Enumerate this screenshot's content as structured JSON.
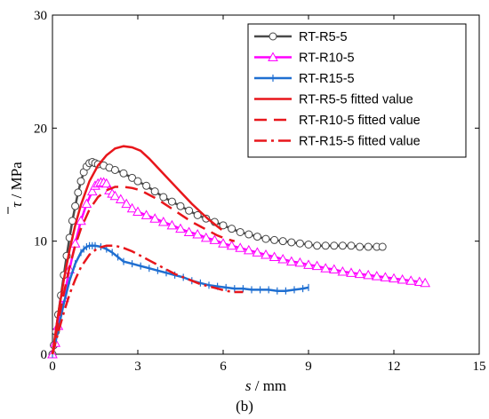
{
  "chart_data": {
    "type": "line",
    "panel_label": "(b)",
    "xlabel_symbol": "s",
    "xlabel_unit": " / mm",
    "ylabel_symbol": "τ",
    "ylabel_unit": " / MPa",
    "xlim": [
      0,
      15
    ],
    "ylim": [
      0,
      30
    ],
    "xticks": [
      0,
      3,
      6,
      9,
      12,
      15
    ],
    "yticks": [
      0,
      10,
      20,
      30
    ],
    "grid": false,
    "legend_position": "top-right",
    "series": [
      {
        "name": "RT-R5-5",
        "color": "#4a4a4a",
        "line_style": "solid",
        "marker": "circle",
        "x": [
          0,
          0.05,
          0.12,
          0.2,
          0.3,
          0.4,
          0.5,
          0.6,
          0.7,
          0.8,
          0.9,
          1.0,
          1.1,
          1.2,
          1.3,
          1.4,
          1.5,
          1.6,
          1.8,
          2.0,
          2.2,
          2.5,
          2.8,
          3.0,
          3.3,
          3.6,
          3.9,
          4.2,
          4.5,
          4.8,
          5.1,
          5.4,
          5.7,
          6.0,
          6.3,
          6.6,
          6.9,
          7.2,
          7.5,
          7.8,
          8.1,
          8.4,
          8.7,
          9.0,
          9.3,
          9.6,
          9.9,
          10.2,
          10.5,
          10.8,
          11.1,
          11.4,
          11.6
        ],
        "y": [
          0,
          0.8,
          2.0,
          3.5,
          5.2,
          7.0,
          8.7,
          10.3,
          11.8,
          13.1,
          14.3,
          15.3,
          16.1,
          16.6,
          16.9,
          17.0,
          16.9,
          16.8,
          16.7,
          16.5,
          16.3,
          16.0,
          15.6,
          15.3,
          14.9,
          14.4,
          13.9,
          13.5,
          13.1,
          12.7,
          12.3,
          12.0,
          11.7,
          11.4,
          11.1,
          10.8,
          10.6,
          10.4,
          10.2,
          10.1,
          10.0,
          9.9,
          9.8,
          9.7,
          9.6,
          9.6,
          9.6,
          9.6,
          9.6,
          9.5,
          9.5,
          9.5,
          9.5
        ]
      },
      {
        "name": "RT-R10-5",
        "color": "#ff00ff",
        "line_style": "solid",
        "marker": "triangle",
        "x": [
          0,
          0.1,
          0.2,
          0.4,
          0.6,
          0.8,
          1.0,
          1.2,
          1.4,
          1.5,
          1.6,
          1.7,
          1.8,
          1.9,
          2.0,
          2.1,
          2.2,
          2.4,
          2.6,
          2.8,
          3.0,
          3.3,
          3.6,
          3.9,
          4.2,
          4.5,
          4.8,
          5.1,
          5.4,
          5.7,
          6.0,
          6.3,
          6.6,
          6.9,
          7.2,
          7.5,
          7.8,
          8.1,
          8.4,
          8.7,
          9.0,
          9.3,
          9.6,
          9.9,
          10.2,
          10.5,
          10.8,
          11.1,
          11.4,
          11.7,
          12.0,
          12.3,
          12.6,
          12.9,
          13.1
        ],
        "y": [
          0,
          1.0,
          2.5,
          5.0,
          7.5,
          9.8,
          11.8,
          13.3,
          14.4,
          14.9,
          15.1,
          15.2,
          15.2,
          15.1,
          14.5,
          14.2,
          14.0,
          13.7,
          13.3,
          12.9,
          12.6,
          12.3,
          12.0,
          11.7,
          11.4,
          11.1,
          10.8,
          10.6,
          10.3,
          10.1,
          9.8,
          9.6,
          9.4,
          9.2,
          9.0,
          8.8,
          8.6,
          8.4,
          8.2,
          8.1,
          7.9,
          7.8,
          7.6,
          7.5,
          7.3,
          7.2,
          7.1,
          7.0,
          6.9,
          6.8,
          6.7,
          6.6,
          6.5,
          6.4,
          6.3
        ]
      },
      {
        "name": "RT-R15-5",
        "color": "#1f6fd1",
        "line_style": "solid",
        "marker": "plus",
        "x": [
          0,
          0.1,
          0.2,
          0.4,
          0.6,
          0.8,
          1.0,
          1.1,
          1.2,
          1.3,
          1.4,
          1.5,
          1.7,
          1.9,
          2.1,
          2.3,
          2.5,
          2.8,
          3.1,
          3.4,
          3.7,
          4.0,
          4.3,
          4.6,
          4.9,
          5.2,
          5.5,
          5.8,
          6.1,
          6.4,
          6.7,
          7.0,
          7.3,
          7.6,
          7.9,
          8.2,
          8.5,
          8.8,
          9.0
        ],
        "y": [
          0,
          1.0,
          2.2,
          4.5,
          6.5,
          8.0,
          9.0,
          9.3,
          9.5,
          9.6,
          9.6,
          9.6,
          9.5,
          9.3,
          9.0,
          8.6,
          8.2,
          8.0,
          7.8,
          7.6,
          7.4,
          7.2,
          7.0,
          6.8,
          6.5,
          6.3,
          6.1,
          6.0,
          5.9,
          5.8,
          5.8,
          5.7,
          5.7,
          5.7,
          5.6,
          5.6,
          5.7,
          5.8,
          5.9
        ]
      },
      {
        "name": "RT-R5-5 fitted value",
        "color": "#e8161b",
        "line_style": "solid",
        "marker": "none",
        "x": [
          0,
          0.2,
          0.4,
          0.6,
          0.8,
          1.0,
          1.3,
          1.6,
          1.9,
          2.2,
          2.5,
          2.8,
          3.1,
          3.4,
          3.7,
          4.0,
          4.3,
          4.6,
          4.9,
          5.2,
          5.5,
          5.8,
          5.95
        ],
        "y": [
          0,
          3.5,
          6.6,
          9.2,
          11.4,
          13.2,
          15.3,
          16.7,
          17.6,
          18.2,
          18.4,
          18.3,
          18.0,
          17.3,
          16.5,
          15.7,
          14.9,
          14.1,
          13.3,
          12.6,
          11.9,
          11.3,
          11.0
        ]
      },
      {
        "name": "RT-R10-5 fitted value",
        "color": "#e8161b",
        "line_style": "dashed",
        "marker": "none",
        "x": [
          0,
          0.2,
          0.4,
          0.6,
          0.8,
          1.0,
          1.3,
          1.6,
          1.9,
          2.2,
          2.5,
          2.8,
          3.1,
          3.4,
          3.7,
          4.0,
          4.3,
          4.6,
          4.9,
          5.2,
          5.5,
          5.8,
          6.1,
          6.4
        ],
        "y": [
          0,
          2.8,
          5.4,
          7.7,
          9.6,
          11.1,
          12.8,
          13.9,
          14.5,
          14.8,
          14.8,
          14.7,
          14.5,
          14.1,
          13.7,
          13.2,
          12.7,
          12.2,
          11.7,
          11.3,
          10.9,
          10.5,
          10.2,
          10.0
        ]
      },
      {
        "name": "RT-R15-5 fitted value",
        "color": "#e8161b",
        "line_style": "dashdot",
        "marker": "none",
        "x": [
          0,
          0.2,
          0.4,
          0.6,
          0.8,
          1.0,
          1.3,
          1.6,
          1.9,
          2.2,
          2.5,
          2.8,
          3.1,
          3.4,
          3.7,
          4.0,
          4.3,
          4.6,
          4.9,
          5.2,
          5.5,
          5.8,
          6.1,
          6.4,
          6.7
        ],
        "y": [
          0,
          1.9,
          3.7,
          5.3,
          6.6,
          7.7,
          8.8,
          9.4,
          9.6,
          9.6,
          9.4,
          9.1,
          8.7,
          8.3,
          7.9,
          7.5,
          7.1,
          6.8,
          6.5,
          6.2,
          6.0,
          5.8,
          5.6,
          5.5,
          5.5
        ]
      }
    ]
  }
}
